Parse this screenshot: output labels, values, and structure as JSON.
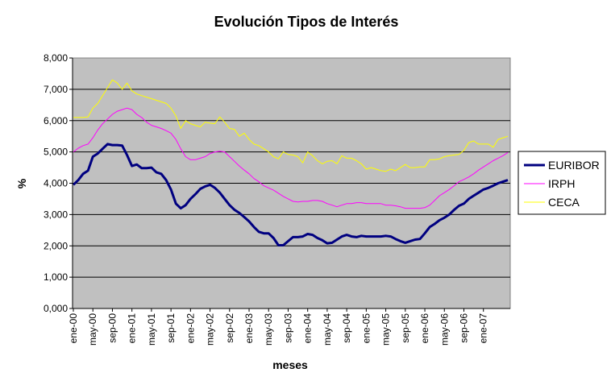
{
  "chart_data": {
    "type": "line",
    "title": "Evolución Tipos de Interés",
    "xlabel": "meses",
    "ylabel": "%",
    "ylim": [
      0,
      8
    ],
    "y_ticks": [
      "0,000",
      "1,000",
      "2,000",
      "3,000",
      "4,000",
      "5,000",
      "6,000",
      "7,000",
      "8,000"
    ],
    "x_ticks": [
      "ene-00",
      "may-00",
      "sep-00",
      "ene-01",
      "may-01",
      "sep-01",
      "ene-02",
      "may-02",
      "sep-02",
      "ene-03",
      "may-03",
      "sep-03",
      "ene-04",
      "may-04",
      "sep-04",
      "ene-05",
      "may-05",
      "sep-05",
      "ene-06",
      "may-06",
      "sep-06",
      "ene-07"
    ],
    "grid": true,
    "legend_position": "right",
    "plot_background": "#C0C0C0",
    "series": [
      {
        "name": "EURIBOR",
        "color": "#000080",
        "values": [
          3.95,
          4.1,
          4.3,
          4.4,
          4.85,
          4.95,
          5.1,
          5.25,
          5.22,
          5.22,
          5.2,
          4.9,
          4.55,
          4.6,
          4.48,
          4.48,
          4.5,
          4.35,
          4.3,
          4.1,
          3.8,
          3.35,
          3.2,
          3.3,
          3.5,
          3.65,
          3.82,
          3.9,
          3.95,
          3.85,
          3.7,
          3.5,
          3.3,
          3.15,
          3.05,
          2.92,
          2.78,
          2.6,
          2.45,
          2.4,
          2.4,
          2.25,
          2.02,
          2.02,
          2.15,
          2.28,
          2.28,
          2.3,
          2.38,
          2.35,
          2.25,
          2.18,
          2.08,
          2.1,
          2.2,
          2.3,
          2.35,
          2.3,
          2.28,
          2.32,
          2.3,
          2.3,
          2.3,
          2.3,
          2.32,
          2.3,
          2.22,
          2.15,
          2.1,
          2.15,
          2.2,
          2.22,
          2.4,
          2.6,
          2.7,
          2.82,
          2.9,
          3.0,
          3.15,
          3.28,
          3.35,
          3.5,
          3.6,
          3.7,
          3.8,
          3.85,
          3.92,
          4.0,
          4.05,
          4.1
        ]
      },
      {
        "name": "IRPH",
        "color": "#FF00FF",
        "values": [
          5.0,
          5.12,
          5.2,
          5.25,
          5.45,
          5.7,
          5.9,
          6.05,
          6.2,
          6.3,
          6.35,
          6.4,
          6.35,
          6.2,
          6.1,
          5.95,
          5.85,
          5.8,
          5.75,
          5.68,
          5.6,
          5.4,
          5.1,
          4.85,
          4.75,
          4.75,
          4.8,
          4.85,
          4.95,
          5.0,
          5.02,
          5.0,
          4.85,
          4.7,
          4.55,
          4.42,
          4.3,
          4.15,
          4.05,
          3.92,
          3.85,
          3.78,
          3.68,
          3.58,
          3.5,
          3.42,
          3.4,
          3.42,
          3.42,
          3.45,
          3.45,
          3.42,
          3.35,
          3.3,
          3.25,
          3.3,
          3.35,
          3.35,
          3.38,
          3.38,
          3.35,
          3.35,
          3.35,
          3.35,
          3.3,
          3.3,
          3.28,
          3.25,
          3.2,
          3.2,
          3.2,
          3.2,
          3.22,
          3.3,
          3.45,
          3.6,
          3.7,
          3.8,
          3.92,
          4.05,
          4.12,
          4.2,
          4.3,
          4.42,
          4.52,
          4.62,
          4.72,
          4.8,
          4.88,
          4.98
        ]
      },
      {
        "name": "CECA",
        "color": "#FFFF00",
        "values": [
          6.1,
          6.1,
          6.1,
          6.12,
          6.4,
          6.55,
          6.8,
          7.05,
          7.3,
          7.2,
          7.0,
          7.2,
          6.95,
          6.85,
          6.8,
          6.75,
          6.7,
          6.65,
          6.6,
          6.55,
          6.4,
          6.15,
          5.75,
          6.0,
          5.9,
          5.85,
          5.8,
          5.95,
          5.92,
          5.9,
          6.12,
          5.95,
          5.75,
          5.72,
          5.5,
          5.6,
          5.4,
          5.25,
          5.2,
          5.1,
          5.0,
          4.85,
          4.78,
          5.0,
          4.92,
          4.9,
          4.85,
          4.65,
          5.0,
          4.88,
          4.72,
          4.62,
          4.7,
          4.72,
          4.62,
          4.88,
          4.8,
          4.8,
          4.72,
          4.62,
          4.45,
          4.5,
          4.45,
          4.4,
          4.38,
          4.45,
          4.4,
          4.5,
          4.6,
          4.5,
          4.5,
          4.52,
          4.52,
          4.75,
          4.75,
          4.78,
          4.85,
          4.88,
          4.9,
          4.92,
          5.05,
          5.3,
          5.35,
          5.25,
          5.25,
          5.25,
          5.15,
          5.4,
          5.45,
          5.5
        ]
      }
    ]
  }
}
